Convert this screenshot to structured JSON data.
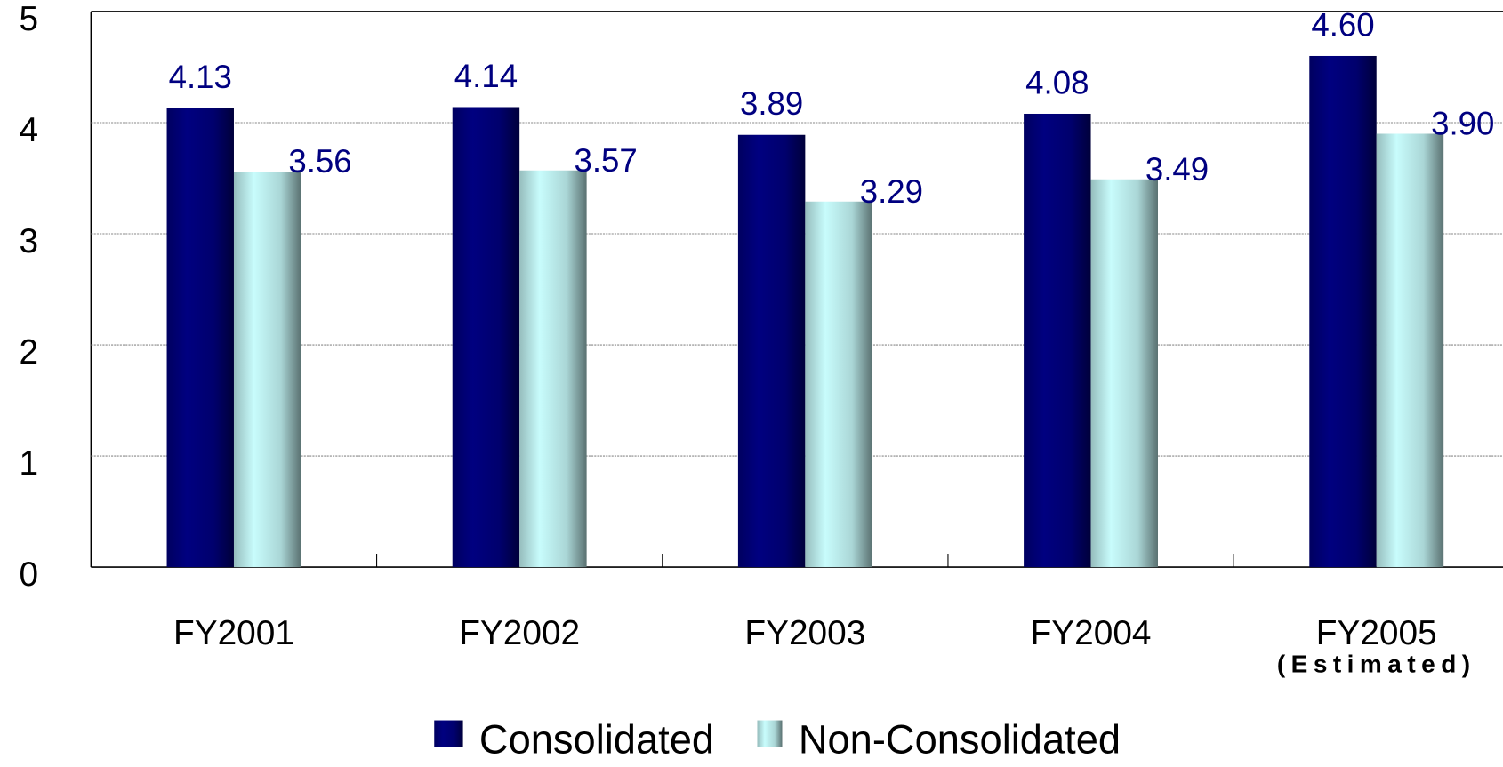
{
  "chart_data": {
    "type": "bar",
    "categories": [
      "FY2001",
      "FY2002",
      "FY2003",
      "FY2004",
      "FY2005"
    ],
    "annotation": "(Estimated)",
    "series": [
      {
        "name": "Consolidated",
        "color": "#000080",
        "values": [
          4.13,
          4.14,
          3.89,
          4.08,
          4.6
        ],
        "value_labels": [
          "4.13",
          "4.14",
          "3.89",
          "4.08",
          "4.60"
        ]
      },
      {
        "name": "Non-Consolidated",
        "color": "#c8fcfc",
        "values": [
          3.56,
          3.57,
          3.29,
          3.49,
          3.9
        ],
        "value_labels": [
          "3.56",
          "3.57",
          "3.29",
          "3.49",
          "3.90"
        ]
      }
    ],
    "ylim": [
      0,
      5
    ],
    "yticks": [
      0,
      1,
      2,
      3,
      4,
      5
    ],
    "grid": true,
    "legend": "bottom"
  }
}
